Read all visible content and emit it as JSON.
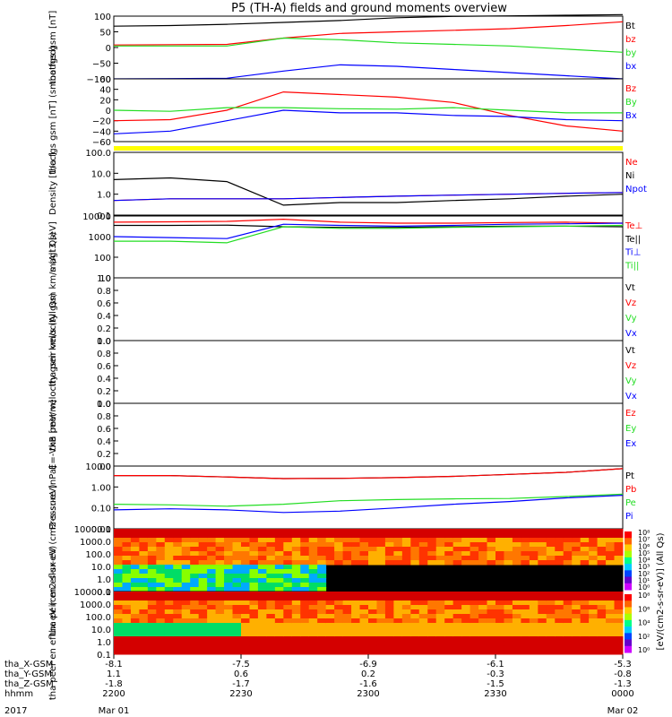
{
  "title": "P5 (TH-A) fields and ground moments overview",
  "colors": {
    "black": "#000000",
    "red": "#ff0000",
    "green": "#22dd22",
    "blue": "#0000ff",
    "yellow": "#ffff00"
  },
  "chart_data": [
    {
      "type": "line",
      "ylabel": "tha fgs gsm [nT]",
      "ylim": [
        -100,
        100
      ],
      "yticks": [
        "100",
        "50",
        "0",
        "−50",
        "−100"
      ],
      "series": [
        {
          "name": "Bt",
          "color": "#000000",
          "values": [
            68,
            70,
            74,
            80,
            86,
            95,
            99,
            101,
            103,
            105
          ]
        },
        {
          "name": "bz",
          "color": "#ff0000",
          "values": [
            8,
            9,
            10,
            30,
            45,
            50,
            55,
            60,
            70,
            82
          ]
        },
        {
          "name": "by",
          "color": "#22dd22",
          "values": [
            5,
            5,
            5,
            30,
            25,
            15,
            10,
            5,
            -5,
            -15
          ]
        },
        {
          "name": "bx",
          "color": "#0000ff",
          "values": [
            -100,
            -99,
            -98,
            -75,
            -55,
            -60,
            -70,
            -80,
            -90,
            -100
          ]
        }
      ]
    },
    {
      "type": "line",
      "ylabel": "tha fgs gsm [nT] (smoothed)",
      "ylim": [
        -60,
        60
      ],
      "yticks": [
        "60",
        "40",
        "20",
        "0",
        "−20",
        "−40",
        "−60"
      ],
      "series": [
        {
          "name": "Bz",
          "color": "#ff0000",
          "values": [
            -20,
            -18,
            0,
            35,
            30,
            25,
            15,
            -10,
            -30,
            -40
          ]
        },
        {
          "name": "By",
          "color": "#22dd22",
          "values": [
            0,
            -2,
            5,
            5,
            3,
            2,
            5,
            0,
            -5,
            -5
          ]
        },
        {
          "name": "Bx",
          "color": "#0000ff",
          "values": [
            -45,
            -40,
            -20,
            0,
            -5,
            -5,
            -10,
            -12,
            -18,
            -20
          ]
        }
      ]
    },
    {
      "type": "line",
      "ylabel": "Density [1/cc]",
      "yscale": "log",
      "ylim": [
        0.1,
        100
      ],
      "yticks": [
        "100.0",
        "10.0",
        "1.0",
        "0.1"
      ],
      "series": [
        {
          "name": "Ne",
          "color": "#ff0000",
          "values": [
            0.5,
            0.6,
            0.6,
            0.6,
            0.7,
            0.8,
            0.9,
            1.0,
            1.1,
            1.2
          ]
        },
        {
          "name": "Ni",
          "color": "#000000",
          "values": [
            5,
            6,
            4,
            0.3,
            0.4,
            0.4,
            0.5,
            0.6,
            0.8,
            1.0
          ]
        },
        {
          "name": "Npot",
          "color": "#0000ff",
          "values": [
            0.5,
            0.6,
            0.6,
            0.6,
            0.7,
            0.8,
            0.9,
            1.0,
            1.1,
            1.2
          ]
        }
      ]
    },
    {
      "type": "line",
      "ylabel": "magt3 [eV]",
      "yscale": "log",
      "ylim": [
        10,
        10000
      ],
      "yticks": [
        "10000",
        "1000",
        "100",
        "10"
      ],
      "series": [
        {
          "name": "Te⊥",
          "color": "#ff0000",
          "values": [
            5000,
            5200,
            5500,
            7000,
            5000,
            4500,
            4500,
            4800,
            5000,
            4500
          ]
        },
        {
          "name": "Te||",
          "color": "#000000",
          "values": [
            3500,
            3500,
            3600,
            3000,
            2800,
            2800,
            3000,
            3200,
            3200,
            3000
          ]
        },
        {
          "name": "Ti⊥",
          "color": "#0000ff",
          "values": [
            1000,
            900,
            800,
            4000,
            3500,
            3200,
            3500,
            4000,
            4200,
            4500
          ]
        },
        {
          "name": "Ti||",
          "color": "#22dd22",
          "values": [
            600,
            600,
            500,
            3000,
            2500,
            2500,
            2800,
            3000,
            3200,
            3500
          ]
        }
      ]
    },
    {
      "type": "line",
      "ylabel": "tha peir velocity gsm km/s (All Qs)",
      "ylim": [
        0,
        1
      ],
      "yticks": [
        "1.0",
        "0.8",
        "0.6",
        "0.4",
        "0.2",
        "0.0"
      ],
      "legend": [
        "Vt",
        "Vz",
        "Vy",
        "Vx"
      ],
      "series": []
    },
    {
      "type": "line",
      "ylabel": "tha peer velocity gsm km/s (All Qs)",
      "ylim": [
        0,
        1
      ],
      "yticks": [
        "1.0",
        "0.8",
        "0.6",
        "0.4",
        "0.2",
        "0.0"
      ],
      "legend": [
        "Vt",
        "Vz",
        "Vy",
        "Vx"
      ],
      "series": []
    },
    {
      "type": "line",
      "ylabel": "E=-VxB [mV/m]",
      "ylim": [
        0,
        1
      ],
      "yticks": [
        "1.0",
        "0.8",
        "0.6",
        "0.4",
        "0.2",
        "0.0"
      ],
      "legend": [
        "Ez",
        "Ey",
        "Ex"
      ],
      "series": []
    },
    {
      "type": "line",
      "ylabel": "Pressure [nPa]",
      "yscale": "log",
      "ylim": [
        0.01,
        10
      ],
      "yticks": [
        "10.00",
        "1.00",
        "0.10",
        "0.01"
      ],
      "series": [
        {
          "name": "Pt",
          "color": "#000000",
          "values": [
            3.5,
            3.5,
            3.0,
            2.5,
            2.6,
            2.8,
            3.2,
            4.0,
            5.0,
            7.5
          ]
        },
        {
          "name": "Pb",
          "color": "#ff0000",
          "values": [
            3.5,
            3.5,
            3.0,
            2.5,
            2.6,
            2.8,
            3.2,
            4.0,
            5.0,
            7.5
          ]
        },
        {
          "name": "Pe",
          "color": "#22dd22",
          "values": [
            0.15,
            0.14,
            0.12,
            0.15,
            0.22,
            0.25,
            0.27,
            0.28,
            0.35,
            0.45
          ]
        },
        {
          "name": "Pi",
          "color": "#0000ff",
          "values": [
            0.08,
            0.09,
            0.08,
            0.06,
            0.07,
            0.1,
            0.15,
            0.2,
            0.3,
            0.4
          ]
        }
      ]
    },
    {
      "type": "heatmap",
      "ylabel": "tha peir en eflux eV (cm2-s-sr-eV)",
      "yscale": "log",
      "ylim": [
        0.1,
        10000
      ],
      "yticks": [
        "10000.0",
        "1000.0",
        "100.0",
        "10.0",
        "1.0",
        "0.1"
      ]
    },
    {
      "type": "heatmap",
      "ylabel": "tha peer en eflux eV (cm2-s-sr-eV)",
      "yscale": "log",
      "ylim": [
        0.1,
        10000
      ],
      "yticks": [
        "10000.0",
        "1000.0",
        "100.0",
        "10.0",
        "1.0",
        "0.1"
      ]
    }
  ],
  "colorbar": {
    "label": "[eV/(cm2-s-sr-eV)] (All Qs)",
    "ticks1": [
      "10⁸",
      "10⁷",
      "10⁶",
      "10⁵",
      "10⁴",
      "10³",
      "10²",
      "10¹",
      "10⁰"
    ],
    "ticks2": [
      "10⁸",
      "10⁶",
      "10⁴",
      "10²",
      "10⁰"
    ]
  },
  "xaxis": {
    "rows": [
      {
        "label": "tha_X-GSM",
        "values": [
          "-8.1",
          "-7.5",
          "-6.9",
          "-6.1",
          "-5.3"
        ]
      },
      {
        "label": "tha_Y-GSM",
        "values": [
          "1.1",
          "0.6",
          "0.2",
          "-0.3",
          "-0.8"
        ]
      },
      {
        "label": "tha_Z-GSM",
        "values": [
          "-1.8",
          "-1.7",
          "-1.6",
          "-1.5",
          "-1.3"
        ]
      },
      {
        "label": "hhmm",
        "values": [
          "2200",
          "2230",
          "2300",
          "2330",
          "0000"
        ]
      }
    ],
    "date_row": {
      "label": "2017",
      "left": "Mar 01",
      "right": "Mar 02"
    }
  }
}
